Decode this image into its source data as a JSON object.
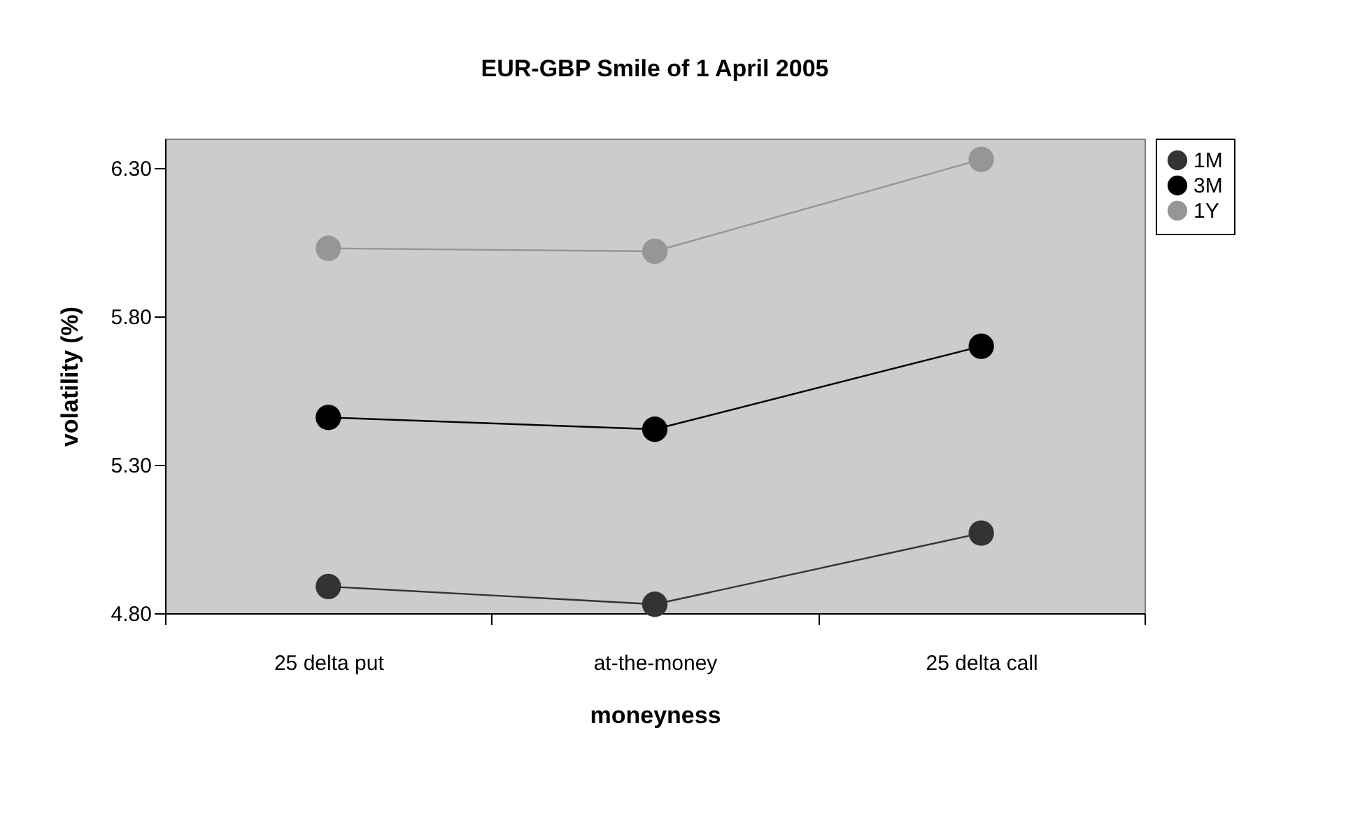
{
  "chart_data": {
    "type": "line",
    "title": "EUR-GBP Smile of 1 April 2005",
    "xlabel": "moneyness",
    "ylabel": "volatility (%)",
    "categories": [
      "25 delta put",
      "at-the-money",
      "25 delta call"
    ],
    "series": [
      {
        "name": "1M",
        "color": "#333333",
        "values": [
          4.89,
          4.83,
          5.07
        ]
      },
      {
        "name": "3M",
        "color": "#000000",
        "values": [
          5.46,
          5.42,
          5.7
        ]
      },
      {
        "name": "1Y",
        "color": "#969696",
        "values": [
          6.03,
          6.02,
          6.33
        ]
      }
    ],
    "ylim": [
      4.8,
      6.4
    ],
    "yticks": [
      {
        "value": 4.8,
        "label": "4.80"
      },
      {
        "value": 5.3,
        "label": "5.30"
      },
      {
        "value": 5.8,
        "label": "5.80"
      },
      {
        "value": 6.3,
        "label": "6.30"
      }
    ],
    "grid": false,
    "legend": "right",
    "marker": "circle",
    "line_style": "solid"
  }
}
